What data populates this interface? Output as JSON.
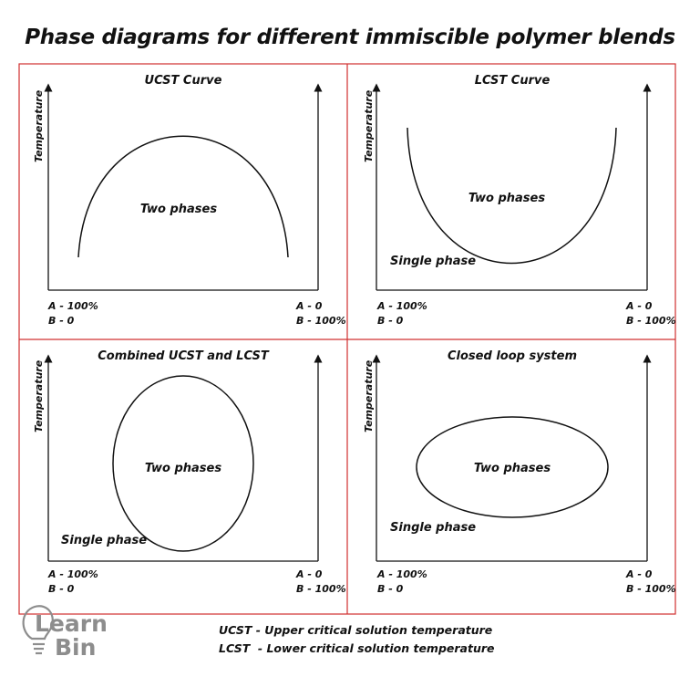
{
  "title": "Phase diagrams for different immiscible polymer blends",
  "colors": {
    "frame": "#d03030",
    "ink": "#111111",
    "logo": "#8d8d8d"
  },
  "panels": [
    {
      "title": "UCST Curve",
      "y_label": "Temperature",
      "labels": [
        "Two phases"
      ],
      "x_left": [
        "A - 100%",
        "B - 0"
      ],
      "x_right": [
        "A - 0",
        "B - 100%"
      ]
    },
    {
      "title": "LCST Curve",
      "y_label": "Temperature",
      "labels": [
        "Two phases",
        "Single phase"
      ],
      "x_left": [
        "A - 100%",
        "B - 0"
      ],
      "x_right": [
        "A - 0",
        "B - 100%"
      ]
    },
    {
      "title": "Combined UCST and LCST",
      "y_label": "Temperature",
      "labels": [
        "Two phases",
        "Single phase"
      ],
      "x_left": [
        "A - 100%",
        "B - 0"
      ],
      "x_right": [
        "A - 0",
        "B - 100%"
      ]
    },
    {
      "title": "Closed loop system",
      "y_label": "Temperature",
      "labels": [
        "Two phases",
        "Single phase"
      ],
      "x_left": [
        "A - 100%",
        "B - 0"
      ],
      "x_right": [
        "A - 0",
        "B - 100%"
      ]
    }
  ],
  "legend": {
    "ucst": "UCST - Upper critical solution temperature",
    "lcst": "LCST  - Lower critical solution temperature"
  },
  "logo": {
    "line1": "Learn",
    "line2": "Bin",
    "icon": "lightbulb-icon"
  }
}
